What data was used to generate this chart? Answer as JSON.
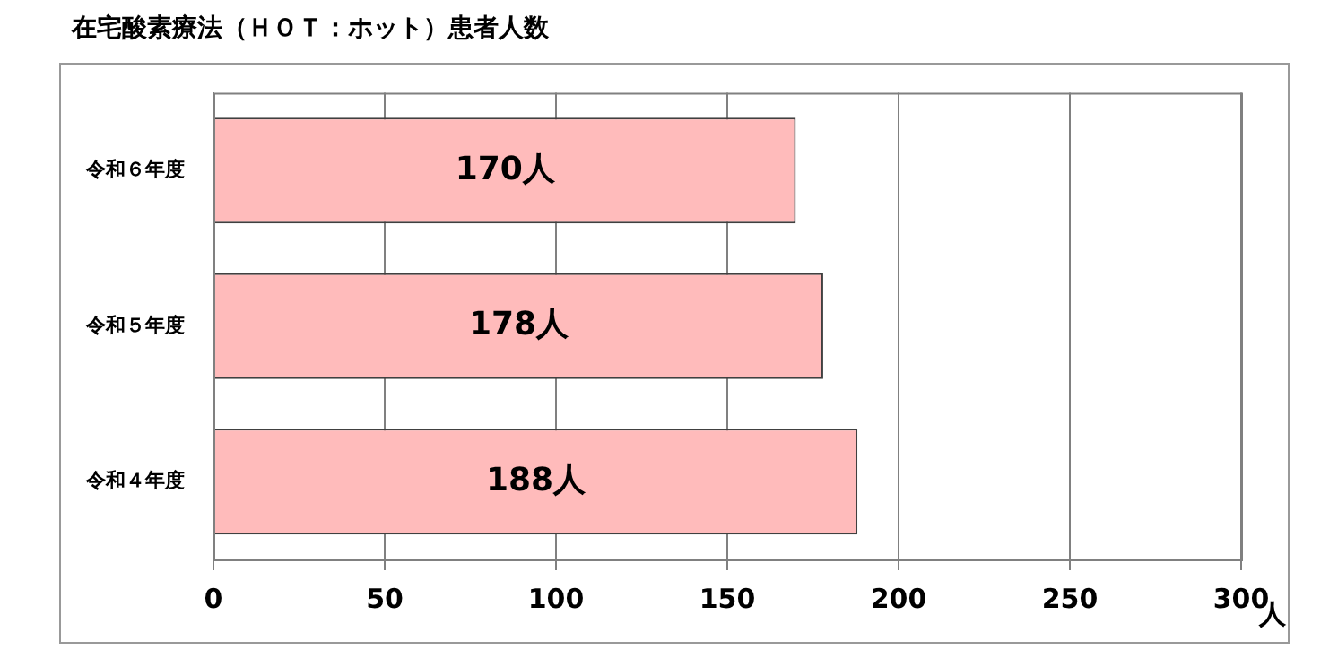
{
  "chart_data": {
    "type": "bar",
    "orientation": "horizontal",
    "title": "在宅酸素療法（ＨＯＴ：ホット）患者人数",
    "categories": [
      "令和６年度",
      "令和５年度",
      "令和４年度"
    ],
    "series": [
      {
        "color": "#ffbbbb",
        "values": [
          170,
          178,
          188
        ],
        "value_labels": [
          "170人",
          "178人",
          "188人"
        ]
      }
    ],
    "xlabel": "人",
    "xlim": [
      0,
      300
    ],
    "xticks": [
      0,
      50,
      100,
      150,
      200,
      250,
      300
    ],
    "grid": "x",
    "legend": false
  }
}
